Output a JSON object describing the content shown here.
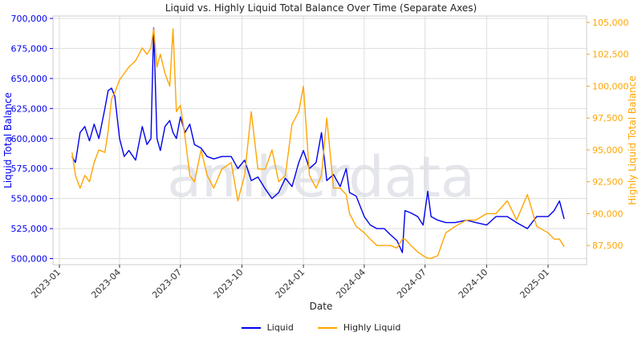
{
  "chart_data": {
    "type": "line",
    "title": "Liquid vs. Highly Liquid Total Balance Over Time (Separate Axes)",
    "xlabel": "Date",
    "ylabel_left": "Liquid Total Balance",
    "ylabel_right": "Highly Liquid Total Balance",
    "watermark": "amberdata",
    "grid": true,
    "legend_position": "bottom-center",
    "x_ticks": [
      "2023-01",
      "2023-04",
      "2023-07",
      "2023-10",
      "2024-01",
      "2024-04",
      "2024-07",
      "2024-10",
      "2025-01"
    ],
    "y_left_ticks": [
      "500,000",
      "525,000",
      "550,000",
      "575,000",
      "600,000",
      "625,000",
      "650,000",
      "675,000",
      "700,000"
    ],
    "y_right_ticks": [
      "87,500",
      "90,000",
      "92,500",
      "95,000",
      "97,500",
      "100,000",
      "102,500",
      "105,000"
    ],
    "ylim_left": [
      495000,
      702000
    ],
    "ylim_right": [
      86000,
      105500
    ],
    "series": [
      {
        "name": "Liquid",
        "axis": "left",
        "color": "#0000ee",
        "x": [
          "2023-01-20",
          "2023-01-25",
          "2023-02-01",
          "2023-02-08",
          "2023-02-15",
          "2023-02-22",
          "2023-03-01",
          "2023-03-10",
          "2023-03-15",
          "2023-03-20",
          "2023-03-25",
          "2023-04-01",
          "2023-04-08",
          "2023-04-15",
          "2023-04-25",
          "2023-05-05",
          "2023-05-12",
          "2023-05-18",
          "2023-05-22",
          "2023-05-27",
          "2023-06-01",
          "2023-06-08",
          "2023-06-15",
          "2023-06-20",
          "2023-06-25",
          "2023-07-01",
          "2023-07-08",
          "2023-07-15",
          "2023-07-22",
          "2023-08-01",
          "2023-08-10",
          "2023-08-20",
          "2023-09-01",
          "2023-09-15",
          "2023-09-25",
          "2023-10-05",
          "2023-10-15",
          "2023-10-25",
          "2023-11-05",
          "2023-11-15",
          "2023-11-25",
          "2023-12-05",
          "2023-12-15",
          "2023-12-25",
          "2024-01-01",
          "2024-01-10",
          "2024-01-20",
          "2024-01-28",
          "2024-02-05",
          "2024-02-15",
          "2024-02-25",
          "2024-03-05",
          "2024-03-10",
          "2024-03-20",
          "2024-04-01",
          "2024-04-10",
          "2024-04-20",
          "2024-05-01",
          "2024-05-10",
          "2024-05-20",
          "2024-05-28",
          "2024-06-01",
          "2024-06-10",
          "2024-06-20",
          "2024-06-28",
          "2024-07-05",
          "2024-07-10",
          "2024-07-20",
          "2024-08-01",
          "2024-08-15",
          "2024-09-01",
          "2024-09-15",
          "2024-10-01",
          "2024-10-15",
          "2024-11-01",
          "2024-11-15",
          "2024-12-01",
          "2024-12-15",
          "2025-01-01",
          "2025-01-10",
          "2025-01-18",
          "2025-01-25"
        ],
        "y": [
          585000,
          580000,
          605000,
          610000,
          598000,
          612000,
          600000,
          625000,
          640000,
          642000,
          635000,
          600000,
          585000,
          590000,
          582000,
          610000,
          595000,
          600000,
          692000,
          600000,
          590000,
          610000,
          615000,
          605000,
          600000,
          618000,
          605000,
          612000,
          595000,
          592000,
          585000,
          583000,
          585000,
          585000,
          575000,
          582000,
          565000,
          568000,
          558000,
          550000,
          555000,
          567000,
          560000,
          580000,
          590000,
          575000,
          580000,
          605000,
          565000,
          570000,
          560000,
          575000,
          555000,
          552000,
          535000,
          528000,
          525000,
          525000,
          520000,
          515000,
          505000,
          540000,
          538000,
          535000,
          528000,
          556000,
          535000,
          532000,
          530000,
          530000,
          532000,
          530000,
          528000,
          535000,
          535000,
          530000,
          525000,
          535000,
          535000,
          540000,
          548000,
          533000
        ]
      },
      {
        "name": "Highly Liquid",
        "axis": "right",
        "color": "#ffa500",
        "x": [
          "2023-01-20",
          "2023-01-25",
          "2023-02-01",
          "2023-02-08",
          "2023-02-15",
          "2023-02-22",
          "2023-03-01",
          "2023-03-10",
          "2023-03-15",
          "2023-03-20",
          "2023-03-25",
          "2023-04-01",
          "2023-04-08",
          "2023-04-15",
          "2023-04-25",
          "2023-05-05",
          "2023-05-12",
          "2023-05-18",
          "2023-05-22",
          "2023-05-27",
          "2023-06-01",
          "2023-06-08",
          "2023-06-15",
          "2023-06-20",
          "2023-06-25",
          "2023-07-01",
          "2023-07-08",
          "2023-07-15",
          "2023-07-22",
          "2023-08-01",
          "2023-08-10",
          "2023-08-20",
          "2023-09-01",
          "2023-09-15",
          "2023-09-25",
          "2023-10-05",
          "2023-10-15",
          "2023-10-25",
          "2023-11-05",
          "2023-11-15",
          "2023-11-25",
          "2023-12-05",
          "2023-12-15",
          "2023-12-25",
          "2024-01-01",
          "2024-01-10",
          "2024-01-20",
          "2024-01-28",
          "2024-02-05",
          "2024-02-15",
          "2024-02-25",
          "2024-03-05",
          "2024-03-10",
          "2024-03-20",
          "2024-04-01",
          "2024-04-10",
          "2024-04-20",
          "2024-05-01",
          "2024-05-10",
          "2024-05-20",
          "2024-05-28",
          "2024-06-01",
          "2024-06-10",
          "2024-06-20",
          "2024-06-28",
          "2024-07-05",
          "2024-07-10",
          "2024-07-20",
          "2024-08-01",
          "2024-08-15",
          "2024-09-01",
          "2024-09-15",
          "2024-10-01",
          "2024-10-15",
          "2024-11-01",
          "2024-11-15",
          "2024-12-01",
          "2024-12-15",
          "2025-01-01",
          "2025-01-10",
          "2025-01-18",
          "2025-01-25"
        ],
        "y": [
          94800,
          93000,
          92000,
          93000,
          92500,
          94000,
          95000,
          94800,
          96500,
          99000,
          99500,
          100500,
          101000,
          101500,
          102000,
          103000,
          102500,
          103000,
          104500,
          101500,
          102500,
          101000,
          100000,
          104500,
          98000,
          98500,
          96000,
          93000,
          92500,
          95000,
          93000,
          92000,
          93500,
          94000,
          91000,
          93000,
          98000,
          93500,
          93500,
          95000,
          92500,
          93000,
          97000,
          98000,
          100000,
          93000,
          92000,
          93000,
          97500,
          92000,
          92000,
          91500,
          90000,
          89000,
          88500,
          88000,
          87500,
          87500,
          87500,
          87300,
          88000,
          88000,
          87500,
          87000,
          86700,
          86500,
          86500,
          86700,
          88500,
          89000,
          89500,
          89500,
          90000,
          90000,
          91000,
          89500,
          91500,
          89000,
          88500,
          88000,
          88000,
          87400
        ]
      }
    ]
  },
  "legend": [
    {
      "label": "Liquid",
      "color": "#0000ee"
    },
    {
      "label": "Highly Liquid",
      "color": "#ffa500"
    }
  ]
}
